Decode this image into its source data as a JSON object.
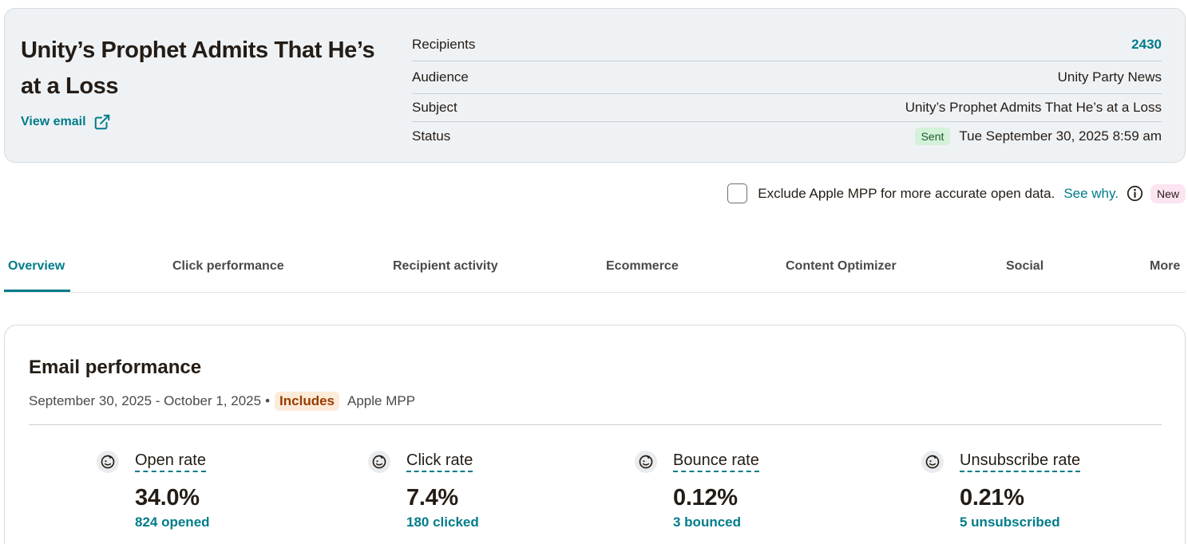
{
  "campaign": {
    "title": "Unity’s Prophet Admits That He’s at a Loss",
    "view_email_label": "View email",
    "details": [
      {
        "label": "Recipients",
        "value": "2430"
      },
      {
        "label": "Audience",
        "value": "Unity Party News"
      },
      {
        "label": "Subject",
        "value": "Unity’s Prophet Admits That He’s at a Loss"
      },
      {
        "label": "Status",
        "badge": "Sent",
        "value": "Tue September 30, 2025 8:59 am"
      }
    ]
  },
  "mpp": {
    "checked": false,
    "label": "Exclude Apple MPP for more accurate open data.",
    "link": "See why.",
    "badge": "New"
  },
  "tabs": [
    {
      "label": "Overview",
      "active": true
    },
    {
      "label": "Click performance"
    },
    {
      "label": "Recipient activity"
    },
    {
      "label": "Ecommerce"
    },
    {
      "label": "Content Optimizer"
    },
    {
      "label": "Social"
    },
    {
      "label": "More"
    }
  ],
  "performance": {
    "title": "Email performance",
    "date_range": "September 30, 2025 - October 1, 2025",
    "separator": "•",
    "includes_label": "Includes",
    "apple_mpp_label": "Apple MPP",
    "metrics": [
      {
        "label": "Open rate",
        "value": "34.0%",
        "sub": "824 opened"
      },
      {
        "label": "Click rate",
        "value": "7.4%",
        "sub": "180 clicked"
      },
      {
        "label": "Bounce rate",
        "value": "0.12%",
        "sub": "3 bounced"
      },
      {
        "label": "Unsubscribe rate",
        "value": "0.21%",
        "sub": "5 unsubscribed"
      }
    ]
  },
  "colors": {
    "accent": "#007c89",
    "card_bg": "#eff2f5",
    "sent_badge_bg": "#d4f2d9",
    "new_badge_bg": "#fce4f1",
    "includes_bg": "#fdebd9",
    "includes_text": "#9a3b00"
  },
  "icons": {
    "external_link": "external-link-icon",
    "info": "info-icon",
    "metric": "freddie-icon"
  }
}
